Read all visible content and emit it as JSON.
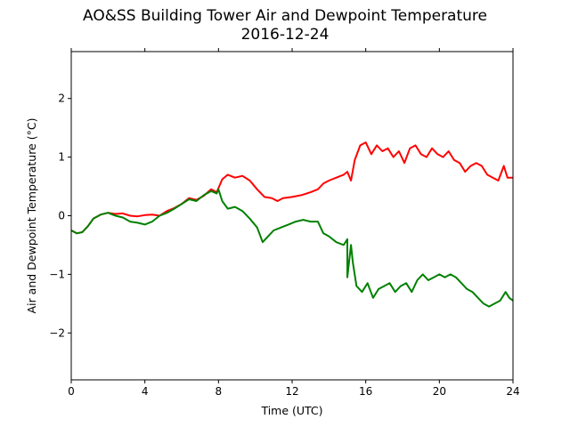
{
  "chart_data": {
    "type": "line",
    "title_line1": "AO&SS Building Tower Air and Dewpoint Temperature",
    "title_line2": "2016-12-24",
    "xlabel": "Time (UTC)",
    "ylabel": "Air and Dewpoint Temperature (°C)",
    "xlim": [
      0,
      24
    ],
    "ylim": [
      -2.8,
      2.8
    ],
    "xticks": [
      0,
      4,
      8,
      12,
      16,
      20,
      24
    ],
    "yticks": [
      -2,
      -1,
      0,
      1,
      2
    ],
    "grid": false,
    "series": [
      {
        "color": "#ff0000",
        "points": [
          [
            0.0,
            -0.25
          ],
          [
            0.3,
            -0.3
          ],
          [
            0.6,
            -0.28
          ],
          [
            0.9,
            -0.18
          ],
          [
            1.2,
            -0.05
          ],
          [
            1.6,
            0.02
          ],
          [
            2.0,
            0.05
          ],
          [
            2.4,
            0.03
          ],
          [
            2.8,
            0.04
          ],
          [
            3.2,
            0.0
          ],
          [
            3.6,
            -0.01
          ],
          [
            4.0,
            0.01
          ],
          [
            4.4,
            0.02
          ],
          [
            4.8,
            0.0
          ],
          [
            5.2,
            0.08
          ],
          [
            5.6,
            0.13
          ],
          [
            6.0,
            0.2
          ],
          [
            6.4,
            0.3
          ],
          [
            6.8,
            0.27
          ],
          [
            7.2,
            0.34
          ],
          [
            7.6,
            0.45
          ],
          [
            7.9,
            0.4
          ],
          [
            8.2,
            0.62
          ],
          [
            8.5,
            0.7
          ],
          [
            8.9,
            0.65
          ],
          [
            9.3,
            0.68
          ],
          [
            9.7,
            0.6
          ],
          [
            10.1,
            0.45
          ],
          [
            10.5,
            0.32
          ],
          [
            10.9,
            0.3
          ],
          [
            11.2,
            0.25
          ],
          [
            11.5,
            0.3
          ],
          [
            12.0,
            0.32
          ],
          [
            12.5,
            0.35
          ],
          [
            13.0,
            0.4
          ],
          [
            13.4,
            0.45
          ],
          [
            13.7,
            0.55
          ],
          [
            14.0,
            0.6
          ],
          [
            14.4,
            0.65
          ],
          [
            14.8,
            0.7
          ],
          [
            15.0,
            0.75
          ],
          [
            15.2,
            0.6
          ],
          [
            15.4,
            0.95
          ],
          [
            15.7,
            1.2
          ],
          [
            16.0,
            1.25
          ],
          [
            16.3,
            1.05
          ],
          [
            16.6,
            1.2
          ],
          [
            16.9,
            1.1
          ],
          [
            17.2,
            1.15
          ],
          [
            17.5,
            1.0
          ],
          [
            17.8,
            1.1
          ],
          [
            18.1,
            0.9
          ],
          [
            18.4,
            1.15
          ],
          [
            18.7,
            1.2
          ],
          [
            19.0,
            1.05
          ],
          [
            19.3,
            1.0
          ],
          [
            19.6,
            1.15
          ],
          [
            19.9,
            1.05
          ],
          [
            20.2,
            1.0
          ],
          [
            20.5,
            1.1
          ],
          [
            20.8,
            0.95
          ],
          [
            21.1,
            0.9
          ],
          [
            21.4,
            0.75
          ],
          [
            21.7,
            0.85
          ],
          [
            22.0,
            0.9
          ],
          [
            22.3,
            0.85
          ],
          [
            22.6,
            0.7
          ],
          [
            22.9,
            0.65
          ],
          [
            23.2,
            0.6
          ],
          [
            23.5,
            0.85
          ],
          [
            23.7,
            0.65
          ],
          [
            24.0,
            0.65
          ]
        ]
      },
      {
        "color": "#008000",
        "points": [
          [
            0.0,
            -0.25
          ],
          [
            0.3,
            -0.3
          ],
          [
            0.6,
            -0.28
          ],
          [
            0.9,
            -0.18
          ],
          [
            1.2,
            -0.05
          ],
          [
            1.6,
            0.02
          ],
          [
            2.0,
            0.05
          ],
          [
            2.4,
            0.0
          ],
          [
            2.8,
            -0.03
          ],
          [
            3.2,
            -0.1
          ],
          [
            3.6,
            -0.12
          ],
          [
            4.0,
            -0.15
          ],
          [
            4.4,
            -0.1
          ],
          [
            4.8,
            0.0
          ],
          [
            5.2,
            0.05
          ],
          [
            5.6,
            0.12
          ],
          [
            6.0,
            0.2
          ],
          [
            6.4,
            0.28
          ],
          [
            6.8,
            0.25
          ],
          [
            7.2,
            0.35
          ],
          [
            7.6,
            0.42
          ],
          [
            7.9,
            0.38
          ],
          [
            8.0,
            0.45
          ],
          [
            8.2,
            0.25
          ],
          [
            8.5,
            0.12
          ],
          [
            8.9,
            0.15
          ],
          [
            9.3,
            0.08
          ],
          [
            9.7,
            -0.05
          ],
          [
            10.1,
            -0.2
          ],
          [
            10.4,
            -0.45
          ],
          [
            10.7,
            -0.35
          ],
          [
            11.0,
            -0.25
          ],
          [
            11.4,
            -0.2
          ],
          [
            11.8,
            -0.15
          ],
          [
            12.2,
            -0.1
          ],
          [
            12.6,
            -0.07
          ],
          [
            13.0,
            -0.1
          ],
          [
            13.4,
            -0.1
          ],
          [
            13.7,
            -0.3
          ],
          [
            14.0,
            -0.35
          ],
          [
            14.4,
            -0.45
          ],
          [
            14.8,
            -0.5
          ],
          [
            15.0,
            -0.4
          ],
          [
            15.0,
            -1.05
          ],
          [
            15.2,
            -0.5
          ],
          [
            15.3,
            -0.8
          ],
          [
            15.5,
            -1.2
          ],
          [
            15.8,
            -1.3
          ],
          [
            16.1,
            -1.15
          ],
          [
            16.4,
            -1.4
          ],
          [
            16.7,
            -1.25
          ],
          [
            17.0,
            -1.2
          ],
          [
            17.3,
            -1.15
          ],
          [
            17.6,
            -1.3
          ],
          [
            17.9,
            -1.2
          ],
          [
            18.2,
            -1.15
          ],
          [
            18.5,
            -1.3
          ],
          [
            18.8,
            -1.1
          ],
          [
            19.1,
            -1.0
          ],
          [
            19.4,
            -1.1
          ],
          [
            19.7,
            -1.05
          ],
          [
            20.0,
            -1.0
          ],
          [
            20.3,
            -1.05
          ],
          [
            20.6,
            -1.0
          ],
          [
            20.9,
            -1.05
          ],
          [
            21.2,
            -1.15
          ],
          [
            21.5,
            -1.25
          ],
          [
            21.8,
            -1.3
          ],
          [
            22.1,
            -1.4
          ],
          [
            22.4,
            -1.5
          ],
          [
            22.7,
            -1.55
          ],
          [
            23.0,
            -1.5
          ],
          [
            23.3,
            -1.45
          ],
          [
            23.6,
            -1.3
          ],
          [
            23.8,
            -1.4
          ],
          [
            24.0,
            -1.45
          ]
        ]
      }
    ]
  }
}
